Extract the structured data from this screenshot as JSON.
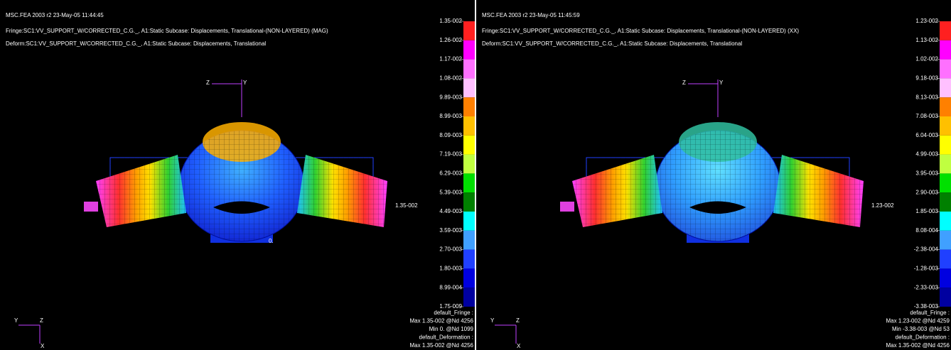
{
  "panels": [
    {
      "header": [
        "MSC.FEA 2003 r2 23-May-05 11:44:45",
        "Fringe:SC1:VV_SUPPORT_W/CORRECTED_C.G._, A1:Static Subcase: Displacements, Translational-(NON-LAYERED) (MAG)",
        "Deform:SC1:VV_SUPPORT_W/CORRECTED_C.G._, A1:Static Subcase: Displacements, Translational"
      ],
      "legend": [
        "1.35-002",
        "1.26-002",
        "1.17-002",
        "1.08-002",
        "9.89-003",
        "8.99-003",
        "8.09-003",
        "7.19-003",
        "6.29-003",
        "5.39-003",
        "4.49-003",
        "3.59-003",
        "2.70-003",
        "1.80-003",
        "8.99-004",
        "1.75-009"
      ],
      "max_marker": "1.35-002",
      "min_marker": "0.",
      "view_triad": [
        "Z",
        "Y"
      ],
      "corner_triad": [
        "Y",
        "Z",
        "X"
      ],
      "summary": [
        "default_Fringe :",
        "Max 1.35-002 @Nd 4256",
        "Min 0. @Nd 1099",
        "default_Deformation :",
        "Max 1.35-002 @Nd 4256"
      ]
    },
    {
      "header": [
        "MSC.FEA 2003 r2 23-May-05 11:45:59",
        "Fringe:SC1:VV_SUPPORT_W/CORRECTED_C.G._, A1:Static Subcase: Displacements, Translational-(NON-LAYERED) (XX)",
        "Deform:SC1:VV_SUPPORT_W/CORRECTED_C.G._, A1:Static Subcase: Displacements, Translational"
      ],
      "legend": [
        "1.23-002",
        "1.13-002",
        "1.02-002",
        "9.18-003",
        "8.13-003",
        "7.08-003",
        "6.04-003",
        "4.99-003",
        "3.95-003",
        "2.90-003",
        "1.85-003",
        "8.08-004",
        "-2.38-004",
        "-1.28-003",
        "-2.33-003",
        "-3.38-003"
      ],
      "max_marker": "1.23-002",
      "view_triad": [
        "Z",
        "Y"
      ],
      "corner_triad": [
        "Y",
        "Z",
        "X"
      ],
      "summary": [
        "default_Fringe :",
        "Max 1.23-002 @Nd 4259",
        "Min -3.38-003 @Nd 53",
        "default_Deformation :",
        "Max 1.35-002 @Nd 4256"
      ]
    }
  ]
}
